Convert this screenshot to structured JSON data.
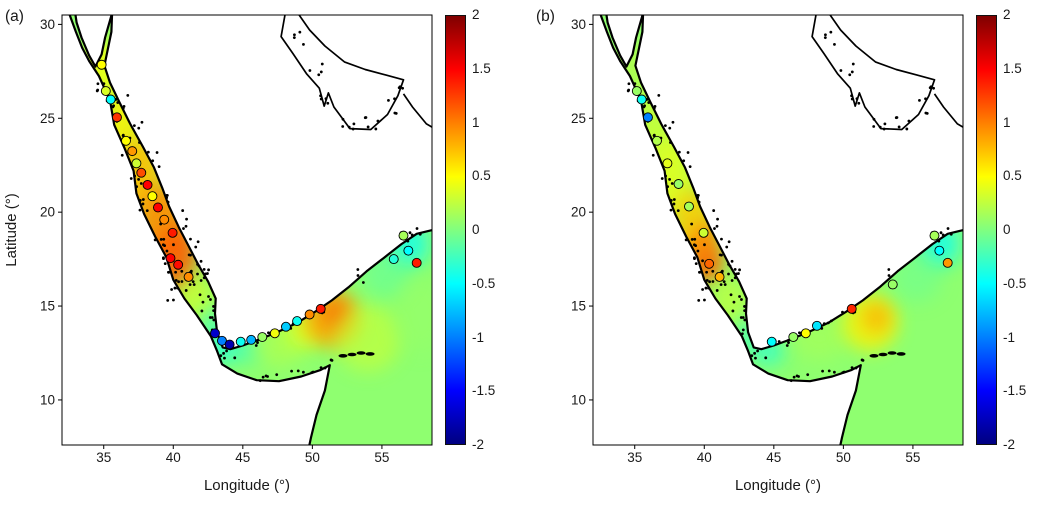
{
  "chart_data": {
    "type": "heatmap",
    "layout": {
      "panels": 2,
      "colorbar_position": "right",
      "grid": false
    },
    "axes": {
      "xlim": [
        32,
        58.6
      ],
      "ylim": [
        7.6,
        30.5
      ],
      "x_ticks": [
        35,
        40,
        45,
        50,
        55
      ],
      "y_ticks": [
        10,
        15,
        20,
        25,
        30
      ],
      "xlabel": "Longitude (°)",
      "ylabel": "Latitude (°)"
    },
    "colorbar": {
      "min": -2,
      "max": 2,
      "ticks": [
        2,
        1.5,
        1,
        0.5,
        0,
        -0.5,
        -1,
        -1.5,
        -2
      ],
      "colormap": "jet"
    },
    "panels": [
      {
        "label": "(a)",
        "xlabel": "Longitude (°)",
        "ylabel": "Latitude (°)",
        "stations": [
          [
            34.85,
            27.85,
            0.5
          ],
          [
            35.15,
            26.45,
            0.35
          ],
          [
            35.5,
            26.0,
            -0.5
          ],
          [
            35.95,
            25.05,
            1.3
          ],
          [
            36.6,
            23.8,
            0.5
          ],
          [
            37.05,
            23.25,
            0.9
          ],
          [
            37.35,
            22.6,
            0.3
          ],
          [
            37.7,
            22.1,
            1.2
          ],
          [
            38.15,
            21.45,
            1.5
          ],
          [
            38.5,
            20.85,
            0.5
          ],
          [
            38.9,
            20.25,
            1.5
          ],
          [
            39.35,
            19.6,
            0.95
          ],
          [
            39.95,
            18.9,
            1.4
          ],
          [
            39.8,
            17.55,
            1.5
          ],
          [
            40.35,
            17.2,
            1.45
          ],
          [
            41.1,
            16.55,
            0.95
          ],
          [
            43.0,
            13.55,
            -1.7
          ],
          [
            43.5,
            13.15,
            -1.0
          ],
          [
            44.05,
            12.95,
            -1.8
          ],
          [
            44.85,
            13.1,
            -0.45
          ],
          [
            45.6,
            13.2,
            -0.8
          ],
          [
            46.4,
            13.35,
            0.1
          ],
          [
            47.3,
            13.55,
            0.45
          ],
          [
            48.1,
            13.9,
            -0.7
          ],
          [
            48.9,
            14.2,
            -0.45
          ],
          [
            49.8,
            14.55,
            0.95
          ],
          [
            50.6,
            14.85,
            1.4
          ],
          [
            55.85,
            17.5,
            -0.35
          ],
          [
            56.55,
            18.75,
            0.15
          ],
          [
            56.9,
            17.95,
            -0.5
          ],
          [
            57.5,
            17.3,
            1.4
          ]
        ],
        "field_blobs": [
          [
            34.9,
            27.6,
            1.6,
            1.6,
            0.45,
            0.85
          ],
          [
            36.3,
            24.7,
            1.5,
            2.0,
            0.55,
            0.85
          ],
          [
            37.6,
            21.9,
            1.7,
            2.2,
            0.75,
            0.9
          ],
          [
            39.2,
            19.3,
            1.8,
            2.2,
            0.95,
            0.9
          ],
          [
            40.2,
            17.5,
            1.5,
            1.8,
            1.15,
            0.85
          ],
          [
            41.6,
            15.4,
            1.3,
            1.3,
            0.3,
            0.8
          ],
          [
            42.9,
            13.9,
            1.0,
            1.0,
            -0.2,
            0.8
          ],
          [
            43.6,
            12.7,
            1.0,
            0.7,
            -0.45,
            0.8
          ],
          [
            45.3,
            12.9,
            1.4,
            0.9,
            -0.25,
            0.7
          ],
          [
            47.6,
            13.0,
            2.0,
            1.2,
            0.2,
            0.7
          ],
          [
            49.6,
            13.8,
            1.4,
            1.0,
            0.45,
            0.7
          ],
          [
            51.4,
            14.3,
            2.0,
            1.5,
            0.85,
            0.85
          ],
          [
            51.7,
            14.6,
            1.0,
            0.8,
            1.1,
            0.7
          ],
          [
            54.0,
            13.3,
            2.4,
            1.8,
            0.3,
            0.6
          ],
          [
            56.9,
            18.3,
            1.5,
            1.2,
            -0.45,
            0.8
          ],
          [
            55.3,
            16.8,
            1.8,
            1.4,
            -0.15,
            0.5
          ],
          [
            57.8,
            14.5,
            2.0,
            2.0,
            0.1,
            0.5
          ]
        ]
      },
      {
        "label": "(b)",
        "xlabel": "Longitude (°)",
        "ylabel": "",
        "stations": [
          [
            35.15,
            26.45,
            0.1
          ],
          [
            35.5,
            26.0,
            -0.45
          ],
          [
            35.95,
            25.05,
            -1.0
          ],
          [
            36.6,
            23.8,
            0.2
          ],
          [
            37.35,
            22.6,
            0.4
          ],
          [
            38.15,
            21.5,
            0.1
          ],
          [
            38.9,
            20.3,
            0.15
          ],
          [
            39.95,
            18.9,
            0.3
          ],
          [
            40.35,
            17.25,
            1.1
          ],
          [
            41.1,
            16.55,
            0.8
          ],
          [
            44.85,
            13.1,
            -0.5
          ],
          [
            46.4,
            13.35,
            0.1
          ],
          [
            47.3,
            13.55,
            0.5
          ],
          [
            48.1,
            13.95,
            -0.6
          ],
          [
            50.6,
            14.85,
            1.35
          ],
          [
            53.55,
            16.15,
            0.1
          ],
          [
            56.55,
            18.75,
            0.15
          ],
          [
            56.9,
            17.95,
            -0.5
          ],
          [
            57.5,
            17.3,
            0.9
          ]
        ],
        "field_blobs": [
          [
            34.9,
            27.6,
            1.6,
            1.6,
            0.2,
            0.8
          ],
          [
            36.3,
            24.7,
            1.5,
            2.0,
            0.3,
            0.8
          ],
          [
            37.6,
            21.9,
            1.7,
            2.2,
            0.4,
            0.85
          ],
          [
            39.2,
            19.4,
            1.6,
            1.9,
            0.7,
            0.85
          ],
          [
            40.0,
            17.9,
            1.2,
            1.5,
            1.0,
            0.85
          ],
          [
            40.3,
            17.1,
            0.9,
            0.9,
            1.15,
            0.7
          ],
          [
            41.8,
            15.3,
            1.3,
            1.3,
            0.25,
            0.8
          ],
          [
            43.2,
            13.4,
            1.0,
            0.9,
            -0.2,
            0.8
          ],
          [
            44.6,
            12.6,
            1.2,
            0.8,
            -0.35,
            0.7
          ],
          [
            48.3,
            13.3,
            2.0,
            1.2,
            0.15,
            0.7
          ],
          [
            51.9,
            14.1,
            2.0,
            1.5,
            0.55,
            0.8
          ],
          [
            52.4,
            14.4,
            1.0,
            0.8,
            0.85,
            0.7
          ],
          [
            56.9,
            18.3,
            1.5,
            1.2,
            -0.45,
            0.8
          ],
          [
            55.3,
            16.6,
            1.8,
            1.4,
            -0.1,
            0.5
          ]
        ]
      }
    ],
    "basemap": {
      "coast_west_south": [
        [
          32.55,
          30.5
        ],
        [
          33.0,
          29.6
        ],
        [
          33.45,
          28.75
        ],
        [
          33.95,
          28.05
        ],
        [
          34.65,
          27.25
        ],
        [
          35.45,
          25.95
        ],
        [
          35.75,
          24.65
        ],
        [
          36.5,
          23.4
        ],
        [
          37.15,
          22.2
        ],
        [
          37.35,
          21.0
        ],
        [
          37.9,
          19.9
        ],
        [
          38.7,
          18.7
        ],
        [
          39.5,
          17.6
        ],
        [
          40.0,
          16.4
        ],
        [
          40.8,
          15.4
        ],
        [
          41.7,
          14.5
        ],
        [
          42.7,
          13.4
        ],
        [
          43.15,
          12.6
        ],
        [
          43.5,
          11.9
        ],
        [
          44.6,
          11.4
        ],
        [
          46.0,
          11.05
        ],
        [
          47.6,
          11.0
        ],
        [
          49.2,
          11.25
        ],
        [
          50.6,
          11.6
        ],
        [
          51.25,
          11.85
        ],
        [
          50.9,
          10.5
        ],
        [
          50.3,
          9.2
        ],
        [
          49.9,
          8.0
        ],
        [
          49.7,
          7.3
        ]
      ],
      "coast_north": [
        [
          58.9,
          19.1
        ],
        [
          57.5,
          18.85
        ],
        [
          56.4,
          18.3
        ],
        [
          55.2,
          17.6
        ],
        [
          53.9,
          16.85
        ],
        [
          52.6,
          16.0
        ],
        [
          51.4,
          15.3
        ],
        [
          50.2,
          14.7
        ],
        [
          48.9,
          14.1
        ],
        [
          47.6,
          13.65
        ],
        [
          46.3,
          13.25
        ],
        [
          45.0,
          12.9
        ],
        [
          44.1,
          12.7
        ],
        [
          43.55,
          12.8
        ],
        [
          43.15,
          13.6
        ],
        [
          43.0,
          14.6
        ],
        [
          43.05,
          15.4
        ],
        [
          42.5,
          16.3
        ],
        [
          41.8,
          17.2
        ],
        [
          41.1,
          18.2
        ],
        [
          40.4,
          19.2
        ],
        [
          39.7,
          20.3
        ],
        [
          39.2,
          21.3
        ],
        [
          38.6,
          22.4
        ],
        [
          37.8,
          23.5
        ],
        [
          36.9,
          24.7
        ],
        [
          36.1,
          25.9
        ],
        [
          35.45,
          26.9
        ],
        [
          35.05,
          27.8
        ],
        [
          35.3,
          28.7
        ],
        [
          35.55,
          29.6
        ],
        [
          35.6,
          30.6
        ],
        [
          35.1,
          29.3
        ],
        [
          34.85,
          28.4
        ],
        [
          34.4,
          27.75
        ],
        [
          33.95,
          28.35
        ],
        [
          33.4,
          29.3
        ],
        [
          33.05,
          30.1
        ],
        [
          32.95,
          30.6
        ]
      ],
      "persian_gulf": [
        [
          48.05,
          30.6
        ],
        [
          47.75,
          29.35
        ],
        [
          48.6,
          28.45
        ],
        [
          49.6,
          27.35
        ],
        [
          50.5,
          26.6
        ],
        [
          50.85,
          25.65
        ],
        [
          51.15,
          26.35
        ],
        [
          51.55,
          25.6
        ],
        [
          52.7,
          24.45
        ],
        [
          54.2,
          24.4
        ],
        [
          55.4,
          25.2
        ],
        [
          56.15,
          26.2
        ],
        [
          56.55,
          27.05
        ],
        [
          55.3,
          27.3
        ],
        [
          53.8,
          27.6
        ],
        [
          52.3,
          28.0
        ],
        [
          50.9,
          28.85
        ],
        [
          49.8,
          29.7
        ],
        [
          48.95,
          30.6
        ]
      ],
      "gulf_of_oman_line": [
        [
          56.55,
          26.3
        ],
        [
          57.2,
          25.6
        ],
        [
          58.2,
          24.7
        ],
        [
          58.9,
          24.4
        ]
      ],
      "islands": [
        [
          52.2,
          12.35
        ],
        [
          52.85,
          12.42
        ],
        [
          53.5,
          12.5
        ],
        [
          54.15,
          12.45
        ]
      ],
      "dot_clusters": [
        [
          34.95,
          27.0,
          4,
          0.45,
          0.55
        ],
        [
          35.6,
          25.5,
          5,
          0.45,
          0.7
        ],
        [
          36.5,
          23.6,
          5,
          0.45,
          0.7
        ],
        [
          37.25,
          21.9,
          6,
          0.45,
          0.8
        ],
        [
          38.1,
          20.3,
          5,
          0.5,
          0.7
        ],
        [
          38.9,
          18.9,
          6,
          0.55,
          0.7
        ],
        [
          39.8,
          17.7,
          7,
          0.55,
          0.7
        ],
        [
          40.4,
          16.1,
          16,
          0.85,
          0.8
        ],
        [
          41.7,
          16.7,
          11,
          0.75,
          0.6
        ],
        [
          42.4,
          15.2,
          7,
          0.55,
          0.6
        ],
        [
          43.0,
          13.9,
          5,
          0.4,
          0.5
        ],
        [
          36.4,
          25.9,
          4,
          0.4,
          0.6
        ],
        [
          37.5,
          24.3,
          4,
          0.4,
          0.6
        ],
        [
          38.6,
          22.8,
          4,
          0.4,
          0.6
        ],
        [
          39.7,
          21.0,
          4,
          0.4,
          0.6
        ],
        [
          40.7,
          19.5,
          4,
          0.4,
          0.6
        ],
        [
          41.5,
          18.3,
          5,
          0.4,
          0.6
        ],
        [
          42.3,
          17.1,
          5,
          0.35,
          0.5
        ],
        [
          43.9,
          12.35,
          5,
          0.6,
          0.3
        ],
        [
          45.6,
          13.0,
          4,
          0.7,
          0.2
        ],
        [
          47.1,
          13.5,
          4,
          0.7,
          0.2
        ],
        [
          48.7,
          14.05,
          4,
          0.7,
          0.25
        ],
        [
          50.3,
          14.75,
          4,
          0.6,
          0.25
        ],
        [
          46.9,
          11.15,
          5,
          0.9,
          0.2
        ],
        [
          49.4,
          11.4,
          5,
          0.9,
          0.2
        ],
        [
          50.95,
          11.9,
          4,
          0.5,
          0.25
        ],
        [
          49.1,
          29.3,
          4,
          0.5,
          0.45
        ],
        [
          50.3,
          27.7,
          4,
          0.5,
          0.5
        ],
        [
          51.0,
          25.9,
          4,
          0.45,
          0.55
        ],
        [
          52.5,
          24.65,
          5,
          0.7,
          0.35
        ],
        [
          54.3,
          24.7,
          5,
          0.8,
          0.35
        ],
        [
          55.75,
          25.7,
          4,
          0.45,
          0.45
        ],
        [
          56.35,
          26.85,
          3,
          0.35,
          0.35
        ],
        [
          56.4,
          18.6,
          4,
          0.55,
          0.45
        ],
        [
          57.5,
          18.95,
          4,
          0.5,
          0.35
        ],
        [
          53.3,
          16.6,
          3,
          0.45,
          0.35
        ]
      ]
    }
  }
}
